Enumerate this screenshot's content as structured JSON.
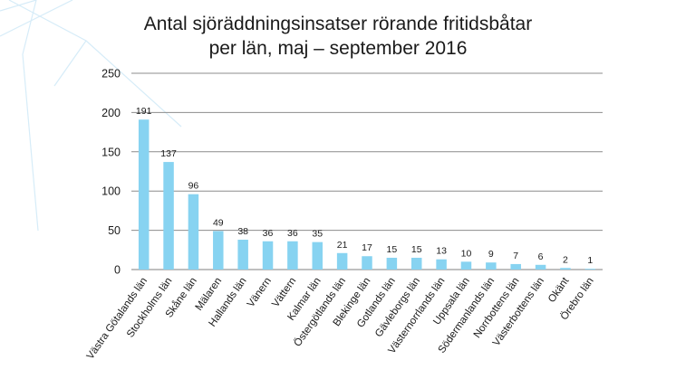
{
  "chart_data": {
    "type": "bar",
    "title": "Antal sjöräddningsinsatser rörande fritidsbåtar",
    "title_line2": "per län, maj – september 2016",
    "xlabel": "",
    "ylabel": "",
    "ylim": [
      0,
      250
    ],
    "yticks": [
      0,
      50,
      100,
      150,
      200,
      250
    ],
    "grid": true,
    "bar_color": "#87d3f1",
    "categories": [
      "Västra Götalands län",
      "Stockholms län",
      "Skåne län",
      "Mälaren",
      "Hallands län",
      "Vänern",
      "Vättern",
      "Kalmar län",
      "Östergötlands län",
      "Blekinge län",
      "Gotlands län",
      "Gävleborgs län",
      "Västernorrlands län",
      "Uppsala län",
      "Södermanlands län",
      "Norrbottens län",
      "Västerbottens län",
      "Okänt",
      "Örebro län"
    ],
    "values": [
      191,
      137,
      96,
      49,
      38,
      36,
      36,
      35,
      21,
      17,
      15,
      15,
      13,
      10,
      9,
      7,
      6,
      2,
      1
    ]
  }
}
